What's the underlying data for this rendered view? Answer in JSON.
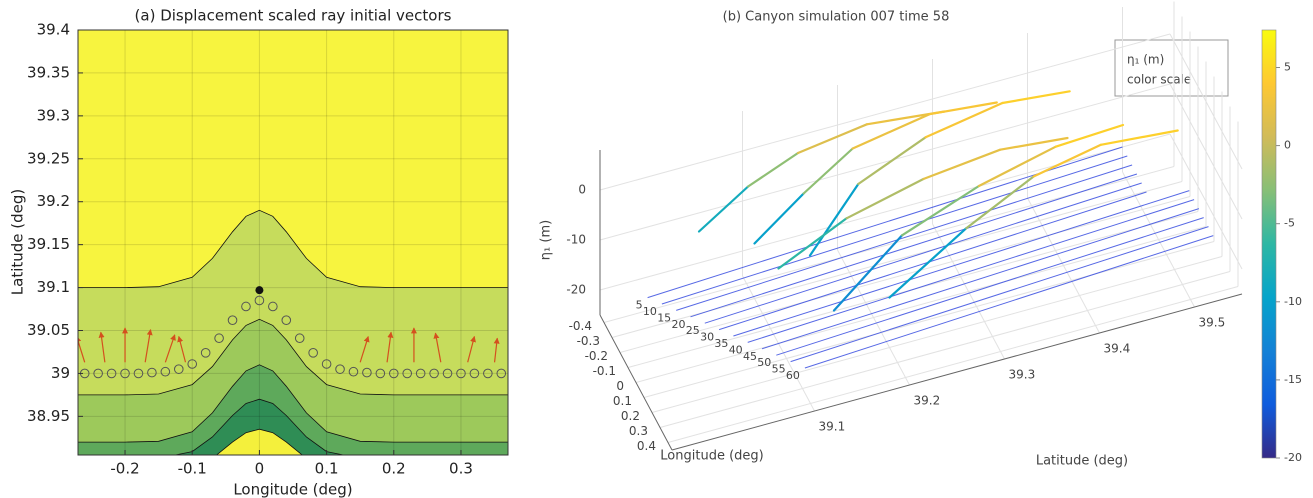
{
  "chart_data": [
    {
      "type": "layers",
      "title": "(a) Displacement scaled ray initial vectors",
      "xlabel": "Longitude (deg)",
      "ylabel": "Latitude (deg)",
      "xlim": [
        -0.27,
        0.37
      ],
      "ylim": [
        38.905,
        39.4
      ],
      "xticks": [
        -0.2,
        -0.1,
        0,
        0.1,
        0.2,
        0.3
      ],
      "yticks": [
        38.95,
        39,
        39.05,
        39.1,
        39.15,
        39.2,
        39.25,
        39.3,
        39.35,
        39.4
      ],
      "grid": true,
      "background": "#f7f43f",
      "x": [
        -0.27,
        -0.2,
        -0.15,
        -0.1,
        -0.07,
        -0.04,
        -0.02,
        0,
        0.02,
        0.04,
        0.07,
        0.1,
        0.15,
        0.2,
        0.3,
        0.37
      ],
      "layers": [
        {
          "color": "#c6dc5c",
          "values": [
            39.1,
            39.1,
            39.101,
            39.112,
            39.134,
            39.165,
            39.183,
            39.19,
            39.183,
            39.165,
            39.134,
            39.112,
            39.101,
            39.1,
            39.1,
            39.1
          ]
        },
        {
          "color": "#9dc95b",
          "values": [
            38.975,
            38.975,
            38.976,
            38.987,
            39.008,
            39.039,
            39.056,
            39.063,
            39.056,
            39.039,
            39.008,
            38.987,
            38.976,
            38.975,
            38.975,
            38.975
          ]
        },
        {
          "color": "#5ea95b",
          "values": [
            38.92,
            38.92,
            38.921,
            38.932,
            38.954,
            38.985,
            39.003,
            39.01,
            39.003,
            38.985,
            38.954,
            38.932,
            38.921,
            38.92,
            38.92,
            38.92
          ]
        },
        {
          "color": "#2f8d55",
          "values": [
            38.9,
            38.9,
            38.901,
            38.909,
            38.926,
            38.951,
            38.965,
            38.97,
            38.965,
            38.951,
            38.926,
            38.909,
            38.901,
            38.9,
            38.9,
            38.9
          ]
        },
        {
          "color": "#f4f03c",
          "values": [
            38.88,
            38.88,
            38.881,
            38.887,
            38.901,
            38.92,
            38.931,
            38.935,
            38.931,
            38.92,
            38.901,
            38.887,
            38.881,
            38.88,
            38.88,
            38.88
          ]
        }
      ],
      "points": {
        "color": "#555555",
        "x": [
          -0.26,
          -0.24,
          -0.22,
          -0.2,
          -0.18,
          -0.16,
          -0.14,
          -0.12,
          -0.1,
          -0.08,
          -0.06,
          -0.04,
          -0.02,
          0,
          0.02,
          0.04,
          0.06,
          0.08,
          0.1,
          0.12,
          0.14,
          0.16,
          0.18,
          0.2,
          0.22,
          0.24,
          0.26,
          0.28,
          0.3,
          0.32,
          0.34,
          0.36
        ],
        "values": [
          39,
          39,
          39,
          39,
          39,
          39.001,
          39.002,
          39.005,
          39.011,
          39.024,
          39.041,
          39.062,
          39.078,
          39.085,
          39.078,
          39.062,
          39.041,
          39.024,
          39.011,
          39.005,
          39.002,
          39.001,
          39,
          39,
          39,
          39,
          39,
          39,
          39,
          39,
          39,
          39
        ]
      },
      "source": {
        "x": 0,
        "y": 39.097,
        "color": "#111111"
      },
      "arrows": {
        "color": "#d4501e",
        "x": [
          -0.26,
          -0.23,
          -0.2,
          -0.17,
          -0.14,
          -0.11,
          0.15,
          0.19,
          0.23,
          0.27,
          0.31,
          0.35
        ],
        "y": [
          39.013,
          39.013,
          39.013,
          39.013,
          39.013,
          39.013,
          39.013,
          39.013,
          39.013,
          39.013,
          39.013,
          39.013
        ],
        "u": [
          -0.012,
          -0.006,
          0,
          0.008,
          0.014,
          -0.01,
          0.012,
          0.006,
          0,
          -0.008,
          0.01,
          0.004
        ],
        "v": [
          0.03,
          0.035,
          0.04,
          0.038,
          0.032,
          0.03,
          0.03,
          0.035,
          0.04,
          0.034,
          0.03,
          0.028
        ]
      }
    },
    {
      "type": "ray3d",
      "title": "(b) Canyon simulation 007 time 58",
      "xlabel": "Longitude (deg)",
      "ylabel": "Latitude (deg)",
      "zlabel": "η₁ (m)",
      "xlim": [
        -0.45,
        0.45
      ],
      "ylim": [
        38.95,
        39.55
      ],
      "zlim": [
        -25,
        8
      ],
      "xticks": [
        -0.4,
        -0.3,
        -0.2,
        -0.1,
        0,
        0.1,
        0.2,
        0.3,
        0.4
      ],
      "yticks": [
        39.1,
        39.2,
        39.3,
        39.4,
        39.5
      ],
      "zticks": [
        -20,
        -10,
        0
      ],
      "grid": true,
      "legend": {
        "title": "η₁ (m)",
        "text": "color scale"
      },
      "colormap": [
        "#352a87",
        "#0f5cdd",
        "#1481d6",
        "#06a4ca",
        "#2eb7a4",
        "#87bf77",
        "#d1bb59",
        "#fec832",
        "#f9fb0e"
      ],
      "colorbar": {
        "clim": [
          -20,
          7.4
        ],
        "ticks": [
          -20,
          -15,
          -10,
          -5,
          0,
          5
        ]
      },
      "ray_color": "#3a4fe0",
      "rays": [
        {
          "label": 5,
          "lon": [
            -0.33,
            -0.45
          ],
          "lat": [
            38.99,
            39.5
          ],
          "z": [
            -20,
            -20
          ]
        },
        {
          "label": 10,
          "lon": [
            -0.27,
            -0.39
          ],
          "lat": [
            39.0,
            39.5
          ],
          "z": [
            -20,
            -20
          ]
        },
        {
          "label": 15,
          "lon": [
            -0.21,
            -0.33
          ],
          "lat": [
            39.01,
            39.5
          ],
          "z": [
            -20,
            -20
          ]
        },
        {
          "label": 20,
          "lon": [
            -0.15,
            -0.27
          ],
          "lat": [
            39.02,
            39.5
          ],
          "z": [
            -20,
            -20
          ]
        },
        {
          "label": 25,
          "lon": [
            -0.09,
            -0.21
          ],
          "lat": [
            39.03,
            39.5
          ],
          "z": [
            -20,
            -20
          ]
        },
        {
          "label": 30,
          "lon": [
            -0.03,
            -0.15
          ],
          "lat": [
            39.04,
            39.5
          ],
          "z": [
            -20,
            -20
          ]
        },
        {
          "label": 35,
          "lon": [
            0.03,
            -0.09
          ],
          "lat": [
            39.05,
            39.54
          ],
          "z": [
            -20,
            -20
          ]
        },
        {
          "label": 40,
          "lon": [
            0.09,
            -0.03
          ],
          "lat": [
            39.06,
            39.54
          ],
          "z": [
            -20,
            -20
          ]
        },
        {
          "label": 45,
          "lon": [
            0.15,
            0.03
          ],
          "lat": [
            39.07,
            39.54
          ],
          "z": [
            -20,
            -20
          ]
        },
        {
          "label": 50,
          "lon": [
            0.21,
            0.09
          ],
          "lat": [
            39.08,
            39.54
          ],
          "z": [
            -20,
            -20
          ]
        },
        {
          "label": 55,
          "lon": [
            0.27,
            0.15
          ],
          "lat": [
            39.09,
            39.54
          ],
          "z": [
            -20,
            -20
          ]
        },
        {
          "label": 60,
          "lon": [
            0.33,
            0.21
          ],
          "lat": [
            39.1,
            39.54
          ],
          "z": [
            -20,
            -20
          ]
        }
      ],
      "tracks": [
        {
          "lon": [
            -0.4,
            -0.38,
            -0.35,
            -0.32,
            -0.3
          ],
          "lat": [
            39.05,
            39.1,
            39.15,
            39.22,
            39.3
          ],
          "z": [
            -12,
            -5,
            0,
            3,
            2
          ]
        },
        {
          "lon": [
            -0.3,
            -0.28,
            -0.26,
            -0.25,
            -0.24
          ],
          "lat": [
            39.1,
            39.15,
            39.2,
            39.28,
            39.35
          ],
          "z": [
            -14,
            -6,
            1,
            4,
            3
          ]
        },
        {
          "lon": [
            -0.2,
            -0.19,
            -0.18,
            -0.17,
            -0.16
          ],
          "lat": [
            39.15,
            39.2,
            39.27,
            39.35,
            39.42
          ],
          "z": [
            -16,
            -4,
            2,
            5,
            4
          ]
        },
        {
          "lon": [
            0,
            0.02,
            0.03,
            0.04,
            0.05
          ],
          "lat": [
            39.1,
            39.17,
            39.25,
            39.33,
            39.4
          ],
          "z": [
            -10,
            -3,
            1,
            3,
            2
          ]
        },
        {
          "lon": [
            0.1,
            0.12,
            0.13,
            0.14,
            0.15
          ],
          "lat": [
            39.15,
            39.22,
            39.3,
            39.38,
            39.45
          ],
          "z": [
            -18,
            -6,
            0,
            4,
            5
          ]
        },
        {
          "lon": [
            0.2,
            0.21,
            0.22,
            0.23,
            0.24
          ],
          "lat": [
            39.2,
            39.28,
            39.35,
            39.42,
            39.5
          ],
          "z": [
            -15,
            -5,
            2,
            5,
            4
          ]
        }
      ]
    }
  ]
}
